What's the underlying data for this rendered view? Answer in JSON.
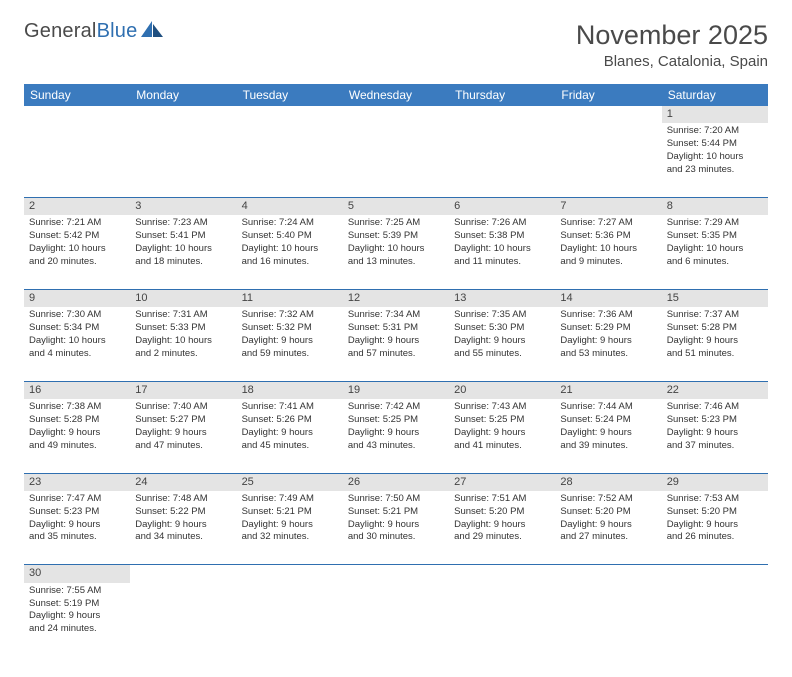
{
  "brand": {
    "part1": "General",
    "part2": "Blue"
  },
  "header": {
    "title": "November 2025",
    "subtitle": "Blanes, Catalonia, Spain"
  },
  "day_headers": [
    "Sunday",
    "Monday",
    "Tuesday",
    "Wednesday",
    "Thursday",
    "Friday",
    "Saturday"
  ],
  "colors": {
    "header_bg": "#3b7bbf",
    "header_text": "#ffffff",
    "daynum_bg": "#e4e4e4",
    "border": "#2f6fb0",
    "text": "#333333",
    "logo_gray": "#4a4a4a",
    "logo_blue": "#2f6fb0"
  },
  "weeks": [
    [
      null,
      null,
      null,
      null,
      null,
      null,
      {
        "n": "1",
        "sr": "Sunrise: 7:20 AM",
        "ss": "Sunset: 5:44 PM",
        "d1": "Daylight: 10 hours",
        "d2": "and 23 minutes."
      }
    ],
    [
      {
        "n": "2",
        "sr": "Sunrise: 7:21 AM",
        "ss": "Sunset: 5:42 PM",
        "d1": "Daylight: 10 hours",
        "d2": "and 20 minutes."
      },
      {
        "n": "3",
        "sr": "Sunrise: 7:23 AM",
        "ss": "Sunset: 5:41 PM",
        "d1": "Daylight: 10 hours",
        "d2": "and 18 minutes."
      },
      {
        "n": "4",
        "sr": "Sunrise: 7:24 AM",
        "ss": "Sunset: 5:40 PM",
        "d1": "Daylight: 10 hours",
        "d2": "and 16 minutes."
      },
      {
        "n": "5",
        "sr": "Sunrise: 7:25 AM",
        "ss": "Sunset: 5:39 PM",
        "d1": "Daylight: 10 hours",
        "d2": "and 13 minutes."
      },
      {
        "n": "6",
        "sr": "Sunrise: 7:26 AM",
        "ss": "Sunset: 5:38 PM",
        "d1": "Daylight: 10 hours",
        "d2": "and 11 minutes."
      },
      {
        "n": "7",
        "sr": "Sunrise: 7:27 AM",
        "ss": "Sunset: 5:36 PM",
        "d1": "Daylight: 10 hours",
        "d2": "and 9 minutes."
      },
      {
        "n": "8",
        "sr": "Sunrise: 7:29 AM",
        "ss": "Sunset: 5:35 PM",
        "d1": "Daylight: 10 hours",
        "d2": "and 6 minutes."
      }
    ],
    [
      {
        "n": "9",
        "sr": "Sunrise: 7:30 AM",
        "ss": "Sunset: 5:34 PM",
        "d1": "Daylight: 10 hours",
        "d2": "and 4 minutes."
      },
      {
        "n": "10",
        "sr": "Sunrise: 7:31 AM",
        "ss": "Sunset: 5:33 PM",
        "d1": "Daylight: 10 hours",
        "d2": "and 2 minutes."
      },
      {
        "n": "11",
        "sr": "Sunrise: 7:32 AM",
        "ss": "Sunset: 5:32 PM",
        "d1": "Daylight: 9 hours",
        "d2": "and 59 minutes."
      },
      {
        "n": "12",
        "sr": "Sunrise: 7:34 AM",
        "ss": "Sunset: 5:31 PM",
        "d1": "Daylight: 9 hours",
        "d2": "and 57 minutes."
      },
      {
        "n": "13",
        "sr": "Sunrise: 7:35 AM",
        "ss": "Sunset: 5:30 PM",
        "d1": "Daylight: 9 hours",
        "d2": "and 55 minutes."
      },
      {
        "n": "14",
        "sr": "Sunrise: 7:36 AM",
        "ss": "Sunset: 5:29 PM",
        "d1": "Daylight: 9 hours",
        "d2": "and 53 minutes."
      },
      {
        "n": "15",
        "sr": "Sunrise: 7:37 AM",
        "ss": "Sunset: 5:28 PM",
        "d1": "Daylight: 9 hours",
        "d2": "and 51 minutes."
      }
    ],
    [
      {
        "n": "16",
        "sr": "Sunrise: 7:38 AM",
        "ss": "Sunset: 5:28 PM",
        "d1": "Daylight: 9 hours",
        "d2": "and 49 minutes."
      },
      {
        "n": "17",
        "sr": "Sunrise: 7:40 AM",
        "ss": "Sunset: 5:27 PM",
        "d1": "Daylight: 9 hours",
        "d2": "and 47 minutes."
      },
      {
        "n": "18",
        "sr": "Sunrise: 7:41 AM",
        "ss": "Sunset: 5:26 PM",
        "d1": "Daylight: 9 hours",
        "d2": "and 45 minutes."
      },
      {
        "n": "19",
        "sr": "Sunrise: 7:42 AM",
        "ss": "Sunset: 5:25 PM",
        "d1": "Daylight: 9 hours",
        "d2": "and 43 minutes."
      },
      {
        "n": "20",
        "sr": "Sunrise: 7:43 AM",
        "ss": "Sunset: 5:25 PM",
        "d1": "Daylight: 9 hours",
        "d2": "and 41 minutes."
      },
      {
        "n": "21",
        "sr": "Sunrise: 7:44 AM",
        "ss": "Sunset: 5:24 PM",
        "d1": "Daylight: 9 hours",
        "d2": "and 39 minutes."
      },
      {
        "n": "22",
        "sr": "Sunrise: 7:46 AM",
        "ss": "Sunset: 5:23 PM",
        "d1": "Daylight: 9 hours",
        "d2": "and 37 minutes."
      }
    ],
    [
      {
        "n": "23",
        "sr": "Sunrise: 7:47 AM",
        "ss": "Sunset: 5:23 PM",
        "d1": "Daylight: 9 hours",
        "d2": "and 35 minutes."
      },
      {
        "n": "24",
        "sr": "Sunrise: 7:48 AM",
        "ss": "Sunset: 5:22 PM",
        "d1": "Daylight: 9 hours",
        "d2": "and 34 minutes."
      },
      {
        "n": "25",
        "sr": "Sunrise: 7:49 AM",
        "ss": "Sunset: 5:21 PM",
        "d1": "Daylight: 9 hours",
        "d2": "and 32 minutes."
      },
      {
        "n": "26",
        "sr": "Sunrise: 7:50 AM",
        "ss": "Sunset: 5:21 PM",
        "d1": "Daylight: 9 hours",
        "d2": "and 30 minutes."
      },
      {
        "n": "27",
        "sr": "Sunrise: 7:51 AM",
        "ss": "Sunset: 5:20 PM",
        "d1": "Daylight: 9 hours",
        "d2": "and 29 minutes."
      },
      {
        "n": "28",
        "sr": "Sunrise: 7:52 AM",
        "ss": "Sunset: 5:20 PM",
        "d1": "Daylight: 9 hours",
        "d2": "and 27 minutes."
      },
      {
        "n": "29",
        "sr": "Sunrise: 7:53 AM",
        "ss": "Sunset: 5:20 PM",
        "d1": "Daylight: 9 hours",
        "d2": "and 26 minutes."
      }
    ],
    [
      {
        "n": "30",
        "sr": "Sunrise: 7:55 AM",
        "ss": "Sunset: 5:19 PM",
        "d1": "Daylight: 9 hours",
        "d2": "and 24 minutes."
      },
      null,
      null,
      null,
      null,
      null,
      null
    ]
  ]
}
